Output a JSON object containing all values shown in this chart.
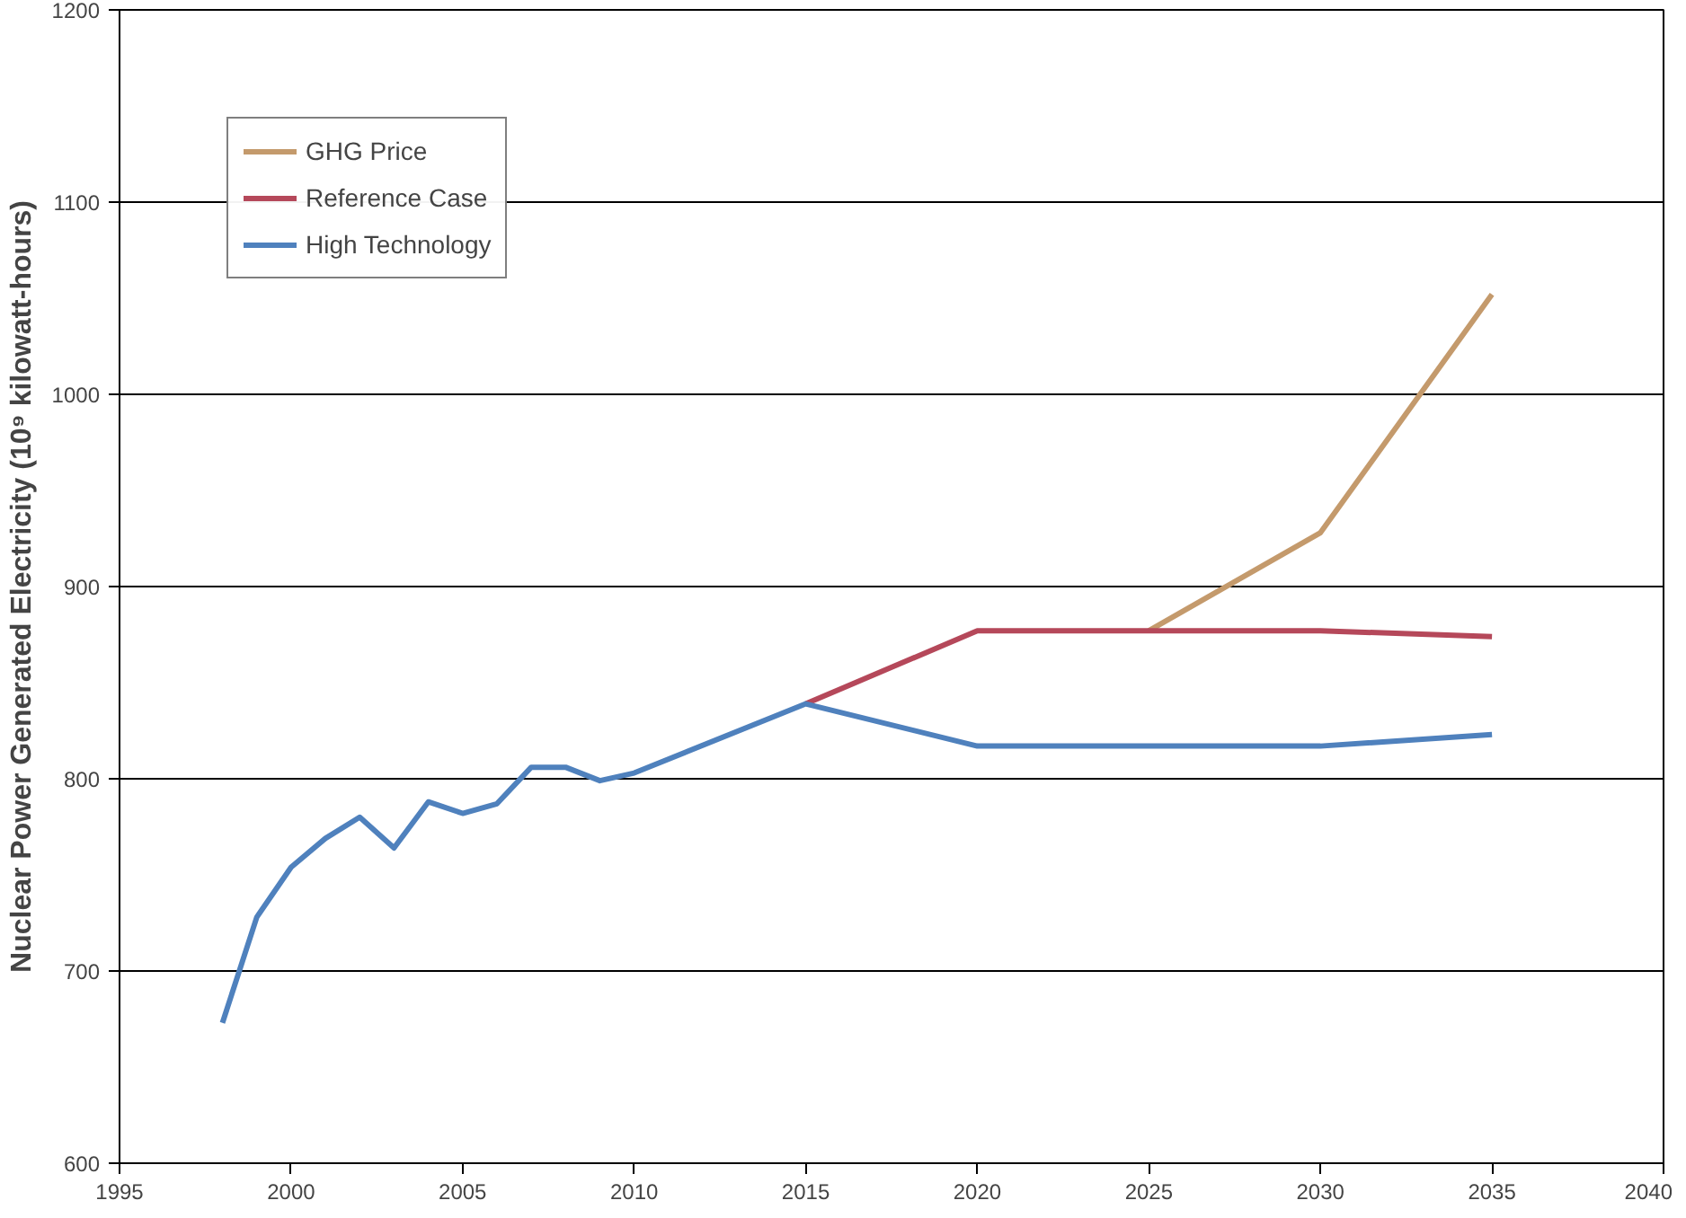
{
  "chart_data": {
    "type": "line",
    "ylabel": "Nuclear Power Generated Electricity (10⁹ kilowatt-hours)",
    "xlim": [
      1995,
      2040
    ],
    "xticks": [
      1995,
      2000,
      2005,
      2010,
      2015,
      2020,
      2025,
      2030,
      2035,
      2040
    ],
    "ylim": [
      600,
      1200
    ],
    "yticks": [
      600,
      700,
      800,
      900,
      1000,
      1100,
      1200
    ],
    "grid": "y",
    "legend": "top left",
    "marker": "none",
    "line_style": "solid",
    "series": [
      {
        "name": "GHG Price",
        "color": "#c49a6c",
        "x": [
          2025,
          2030,
          2035
        ],
        "values": [
          877,
          928,
          1052
        ]
      },
      {
        "name": "Reference Case",
        "color": "#b5485a",
        "x": [
          2015,
          2020,
          2025,
          2030,
          2035
        ],
        "values": [
          839,
          877,
          877,
          877,
          874
        ]
      },
      {
        "name": "High Technology",
        "color": "#4f81bd",
        "x": [
          1998,
          1999,
          2000,
          2001,
          2002,
          2003,
          2004,
          2005,
          2006,
          2007,
          2008,
          2009,
          2010,
          2015,
          2020,
          2030,
          2035
        ],
        "values": [
          673,
          728,
          754,
          769,
          780,
          764,
          788,
          782,
          787,
          806,
          806,
          799,
          803,
          839,
          817,
          817,
          823
        ]
      }
    ]
  }
}
